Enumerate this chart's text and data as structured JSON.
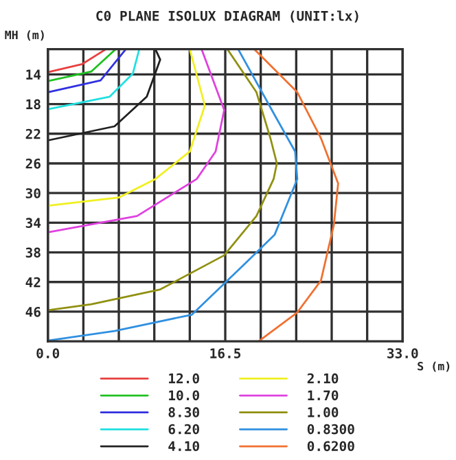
{
  "chart_data": {
    "type": "line",
    "title": "C0 PLANE ISOLUX DIAGRAM (UNIT:lx)",
    "xlabel": "S (m)",
    "ylabel": "MH (m)",
    "xlim": [
      0,
      33
    ],
    "ylim": [
      50,
      10.6
    ],
    "xticks": [
      {
        "value": 0,
        "label": "0.0"
      },
      {
        "value": 3.3,
        "label": null
      },
      {
        "value": 6.6,
        "label": null
      },
      {
        "value": 9.9,
        "label": null
      },
      {
        "value": 13.2,
        "label": null
      },
      {
        "value": 16.5,
        "label": "16.5"
      },
      {
        "value": 19.8,
        "label": null
      },
      {
        "value": 23.1,
        "label": null
      },
      {
        "value": 26.4,
        "label": null
      },
      {
        "value": 29.7,
        "label": null
      },
      {
        "value": 33,
        "label": "33.0"
      }
    ],
    "yticks": [
      14,
      18,
      22,
      26,
      30,
      34,
      38,
      42,
      46
    ],
    "grid": true,
    "legend": "bottom",
    "marker": "none",
    "line_style": "solid",
    "series": [
      {
        "name": "12.0",
        "color": "#e84040",
        "x": [
          0,
          3.2,
          5.4
        ],
        "values": [
          13.7,
          12.6,
          10.6
        ]
      },
      {
        "name": "10.0",
        "color": "#20c020",
        "x": [
          0,
          4.05,
          6.3
        ],
        "values": [
          14.9,
          13.6,
          10.6
        ]
      },
      {
        "name": "8.30",
        "color": "#3030e0",
        "x": [
          0,
          4.9,
          7.25
        ],
        "values": [
          16.4,
          14.8,
          10.6
        ]
      },
      {
        "name": "6.20",
        "color": "#20e0e0",
        "x": [
          0,
          5.75,
          7.9,
          8.5
        ],
        "values": [
          18.7,
          17.0,
          13.9,
          10.6
        ]
      },
      {
        "name": "4.10",
        "color": "#202020",
        "x": [
          0,
          6.2,
          9.2,
          10.45,
          10.0
        ],
        "values": [
          22.9,
          21.0,
          17.0,
          12.0,
          10.6
        ]
      },
      {
        "name": "2.10",
        "color": "#f0f020",
        "x": [
          0,
          6.6,
          10.0,
          13.2,
          14.6,
          13.2
        ],
        "values": [
          31.7,
          30.6,
          28.1,
          24.4,
          18.2,
          10.6
        ]
      },
      {
        "name": "1.70",
        "color": "#e040e0",
        "x": [
          0,
          8.3,
          13.85,
          15.6,
          16.4,
          14.3
        ],
        "values": [
          35.3,
          33.1,
          28.1,
          24.4,
          18.8,
          10.6
        ]
      },
      {
        "name": "1.00",
        "color": "#909010",
        "x": [
          0,
          4.05,
          10.45,
          16.4,
          19.4,
          21.0,
          21.3,
          20.7,
          19.4,
          16.7
        ],
        "values": [
          45.8,
          45.0,
          43.0,
          38.4,
          33.1,
          28.1,
          26.0,
          22.6,
          16.4,
          10.6
        ]
      },
      {
        "name": "0.8300",
        "color": "#3090e0",
        "x": [
          0,
          6.2,
          13.4,
          18.5,
          21.1,
          23.2,
          23.0,
          21.1,
          17.7
        ],
        "values": [
          49.9,
          48.6,
          46.4,
          39.3,
          35.6,
          28.1,
          24.4,
          19.5,
          10.6
        ]
      },
      {
        "name": "0.6200",
        "color": "#f07030",
        "x": [
          19.6,
          23.2,
          25.4,
          26.6,
          27.0,
          25.4,
          23.2,
          19.2
        ],
        "values": [
          50,
          46.1,
          41.8,
          34.3,
          28.7,
          22.6,
          16.4,
          10.6
        ]
      }
    ]
  }
}
